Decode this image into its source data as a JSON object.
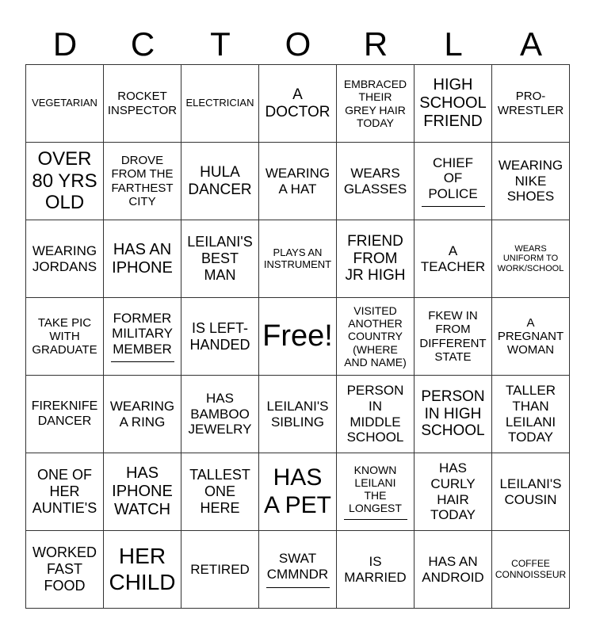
{
  "header": [
    "D",
    "C",
    "T",
    "O",
    "R",
    "L",
    "A"
  ],
  "cells": [
    {
      "text": "VEGETARIAN"
    },
    {
      "text": "ROCKET\nINSPECTOR"
    },
    {
      "text": "ELECTRICIAN"
    },
    {
      "text": "A\nDOCTOR"
    },
    {
      "text": "EMBRACED\nTHEIR\nGREY HAIR\nTODAY"
    },
    {
      "text": "HIGH\nSCHOOL\nFRIEND"
    },
    {
      "text": "PRO-\nWRESTLER"
    },
    {
      "text": "OVER\n80 YRS\nOLD"
    },
    {
      "text": "DROVE\nFROM THE\nFARTHEST\nCITY"
    },
    {
      "text": "HULA\nDANCER"
    },
    {
      "text": "WEARING\nA HAT"
    },
    {
      "text": "WEARS\nGLASSES"
    },
    {
      "text": "CHIEF\nOF\nPOLICE",
      "blank": true
    },
    {
      "text": "WEARING\nNIKE\nSHOES"
    },
    {
      "text": "WEARING\nJORDANS"
    },
    {
      "text": "HAS AN\nIPHONE"
    },
    {
      "text": "LEILANI'S\nBEST\nMAN"
    },
    {
      "text": "PLAYS AN\nINSTRUMENT"
    },
    {
      "text": "FRIEND\nFROM\nJR HIGH"
    },
    {
      "text": "A\nTEACHER"
    },
    {
      "text": "WEARS\nUNIFORM TO\nWORK/SCHOOL"
    },
    {
      "text": "TAKE PIC\nWITH\nGRADUATE"
    },
    {
      "text": "FORMER\nMILITARY\nMEMBER",
      "blank": true
    },
    {
      "text": "IS LEFT-\nHANDED"
    },
    {
      "text": "Free!"
    },
    {
      "text": "VISITED\nANOTHER\nCOUNTRY\n(WHERE\nAND NAME)"
    },
    {
      "text": "FKEW IN\nFROM\nDIFFERENT\nSTATE"
    },
    {
      "text": "A\nPREGNANT\nWOMAN"
    },
    {
      "text": "FIREKNIFE\nDANCER"
    },
    {
      "text": "WEARING\nA RING"
    },
    {
      "text": "HAS\nBAMBOO\nJEWELRY"
    },
    {
      "text": "LEILANI'S\nSIBLING"
    },
    {
      "text": "PERSON\nIN\nMIDDLE\nSCHOOL"
    },
    {
      "text": "PERSON\nIN HIGH\nSCHOOL"
    },
    {
      "text": "TALLER\nTHAN\nLEILANI\nTODAY"
    },
    {
      "text": "ONE OF\nHER\nAUNTIE'S"
    },
    {
      "text": "HAS\nIPHONE\nWATCH"
    },
    {
      "text": "TALLEST\nONE\nHERE"
    },
    {
      "text": "HAS\nA PET"
    },
    {
      "text": "KNOWN\nLEILANI\nTHE\nLONGEST",
      "blank": true
    },
    {
      "text": "HAS\nCURLY\nHAIR\nTODAY"
    },
    {
      "text": "LEILANI'S\nCOUSIN"
    },
    {
      "text": "WORKED\nFAST\nFOOD"
    },
    {
      "text": "HER\nCHILD"
    },
    {
      "text": "RETIRED"
    },
    {
      "text": "SWAT\nCMMNDR",
      "blank": true
    },
    {
      "text": "IS\nMARRIED"
    },
    {
      "text": "HAS AN\nANDROID"
    },
    {
      "text": "COFFEE\nCONNOISSEUR"
    }
  ]
}
